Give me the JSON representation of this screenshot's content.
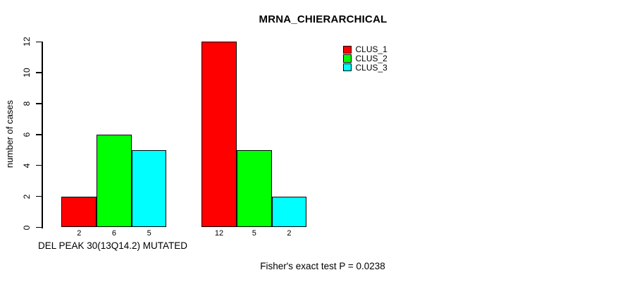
{
  "chart_data": {
    "type": "bar",
    "title": "MRNA_CHIERARCHICAL",
    "xlabel": "DEL PEAK 30(13Q14.2) MUTATED",
    "ylabel": "number of cases",
    "footer": "Fisher's exact test P = 0.0238",
    "ylim": [
      0,
      12
    ],
    "grid": false,
    "legend_position": "top-right",
    "y_axis": {
      "ticks": [
        "0",
        "2",
        "4",
        "6",
        "8",
        "10",
        "12"
      ],
      "tick_values": [
        0,
        2,
        4,
        6,
        8,
        10,
        12
      ]
    },
    "series": [
      {
        "name": "CLUS_1",
        "color": "#FF0000",
        "values": [
          2,
          12
        ]
      },
      {
        "name": "CLUS_2",
        "color": "#00FF00",
        "values": [
          6,
          5
        ]
      },
      {
        "name": "CLUS_3",
        "color": "#00FFFF",
        "values": [
          5,
          2
        ]
      }
    ],
    "bar_labels": [
      [
        "2",
        "6",
        "5"
      ],
      [
        "12",
        "5",
        "2"
      ]
    ],
    "legend": {
      "entries": [
        {
          "label": "CLUS_1",
          "color": "#FF0000"
        },
        {
          "label": "CLUS_2",
          "color": "#00FF00"
        },
        {
          "label": "CLUS_3",
          "color": "#00FFFF"
        }
      ]
    }
  }
}
